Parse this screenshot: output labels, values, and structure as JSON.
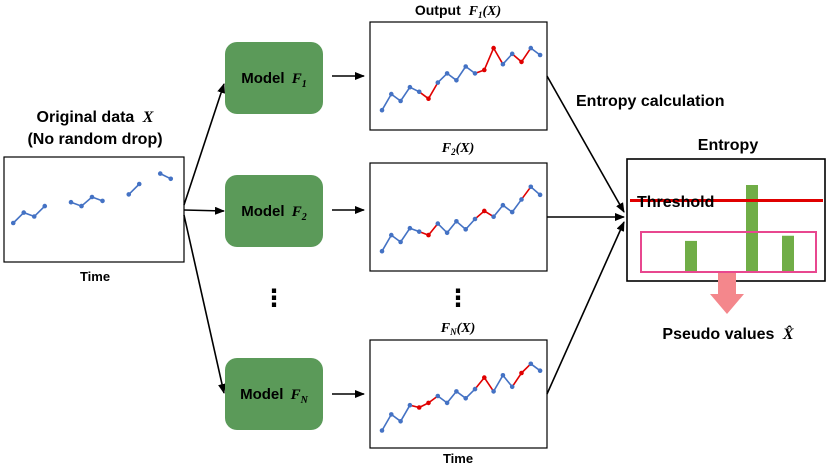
{
  "input": {
    "title_line1": "Original data",
    "title_var": "X",
    "title_line2": "(No random drop)",
    "axis_label": "Time",
    "segments": [
      [
        [
          0.5,
          3.0
        ],
        [
          1.5,
          3.8
        ],
        [
          2.5,
          3.5
        ],
        [
          3.5,
          4.3
        ]
      ],
      [
        [
          6.0,
          4.6
        ],
        [
          7.0,
          4.3
        ],
        [
          8.0,
          5.0
        ],
        [
          9.0,
          4.7
        ]
      ],
      [
        [
          11.5,
          5.2
        ],
        [
          12.5,
          6.0
        ]
      ],
      [
        [
          14.5,
          6.8
        ],
        [
          15.5,
          6.4
        ]
      ]
    ]
  },
  "models": [
    {
      "label": "Model",
      "var": "F",
      "sub": "1"
    },
    {
      "label": "Model",
      "var": "F",
      "sub": "2"
    },
    {
      "label": "Model",
      "var": "F",
      "sub": "N"
    }
  ],
  "outputs": [
    {
      "title_prefix": "Output",
      "var": "F",
      "sub": "1",
      "arg": "(X)",
      "points": [
        [
          0,
          1.2
        ],
        [
          1,
          2.6
        ],
        [
          2,
          2.0
        ],
        [
          3,
          3.2
        ],
        [
          4,
          2.8
        ],
        [
          5,
          2.2
        ],
        [
          6,
          3.6
        ],
        [
          7,
          4.4
        ],
        [
          8,
          3.8
        ],
        [
          9,
          5.0
        ],
        [
          10,
          4.4
        ],
        [
          11,
          4.7
        ],
        [
          12,
          6.6
        ],
        [
          13,
          5.2
        ],
        [
          14,
          6.1
        ],
        [
          15,
          5.4
        ],
        [
          16,
          6.6
        ],
        [
          17,
          6.0
        ]
      ],
      "red_segments": [
        [
          4,
          5
        ],
        [
          5,
          6
        ],
        [
          10,
          11
        ],
        [
          11,
          12
        ],
        [
          12,
          13
        ],
        [
          14,
          15
        ],
        [
          15,
          16
        ]
      ]
    },
    {
      "title_prefix": "",
      "var": "F",
      "sub": "2",
      "arg": "(X)",
      "points": [
        [
          0,
          1.2
        ],
        [
          1,
          2.6
        ],
        [
          2,
          2.0
        ],
        [
          3,
          3.2
        ],
        [
          4,
          2.9
        ],
        [
          5,
          2.6
        ],
        [
          6,
          3.6
        ],
        [
          7,
          2.8
        ],
        [
          8,
          3.8
        ],
        [
          9,
          3.1
        ],
        [
          10,
          4.0
        ],
        [
          11,
          4.7
        ],
        [
          12,
          4.2
        ],
        [
          13,
          5.2
        ],
        [
          14,
          4.6
        ],
        [
          15,
          5.7
        ],
        [
          16,
          6.8
        ],
        [
          17,
          6.1
        ]
      ],
      "red_segments": [
        [
          4,
          5
        ],
        [
          5,
          6
        ],
        [
          10,
          11
        ],
        [
          11,
          12
        ],
        [
          15,
          16
        ]
      ]
    },
    {
      "title_prefix": "",
      "var": "F",
      "sub": "N",
      "arg": "(X)",
      "points": [
        [
          0,
          1.0
        ],
        [
          1,
          2.4
        ],
        [
          2,
          1.8
        ],
        [
          3,
          3.2
        ],
        [
          4,
          3.0
        ],
        [
          5,
          3.4
        ],
        [
          6,
          4.0
        ],
        [
          7,
          3.4
        ],
        [
          8,
          4.4
        ],
        [
          9,
          3.8
        ],
        [
          10,
          4.6
        ],
        [
          11,
          5.6
        ],
        [
          12,
          4.4
        ],
        [
          13,
          5.8
        ],
        [
          14,
          4.8
        ],
        [
          15,
          6.0
        ],
        [
          16,
          6.8
        ],
        [
          17,
          6.2
        ]
      ],
      "red_segments": [
        [
          3,
          4
        ],
        [
          4,
          5
        ],
        [
          5,
          6
        ],
        [
          10,
          11
        ],
        [
          11,
          12
        ],
        [
          14,
          15
        ],
        [
          15,
          16
        ]
      ]
    }
  ],
  "output_axis_label": "Time",
  "ellipsis": "⋮",
  "entropy_calc_label": "Entropy calculation",
  "entropy": {
    "title": "Entropy",
    "threshold_label": "Threshold",
    "bars": [
      {
        "position": 1,
        "value": 0.35
      },
      {
        "position": 2,
        "value": 1.0
      },
      {
        "position": 3,
        "value": 0.41
      }
    ],
    "threshold_value": 0.82,
    "colors": {
      "bar": "#70AD47",
      "threshold": "#E00000",
      "box": "#E8478F",
      "arrow": "#F4878C"
    }
  },
  "pseudo_label": "Pseudo values",
  "pseudo_var": "X̂",
  "colors": {
    "model_fill": "#5B9A59",
    "series_blue": "#4472C4",
    "series_red": "#E00000"
  }
}
